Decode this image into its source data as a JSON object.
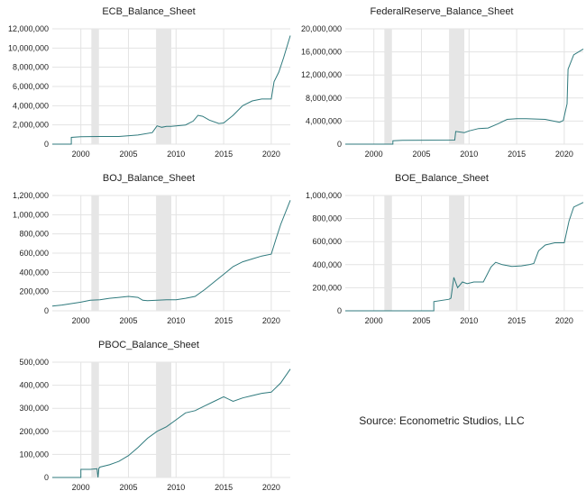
{
  "source_note": "Source: Econometric Studios, LLC",
  "colors": {
    "line": "#2f7a7d",
    "shade": "#e6e6e6",
    "grid": "#e3e3e3"
  },
  "chart_data": [
    {
      "type": "line",
      "title": "ECB_Balance_Sheet",
      "xlim": [
        1997,
        2022
      ],
      "xticks": [
        2000,
        2005,
        2010,
        2015,
        2020
      ],
      "ylim": [
        0,
        12000000
      ],
      "yticks": [
        0,
        2000000,
        4000000,
        6000000,
        8000000,
        10000000,
        12000000
      ],
      "ytick_labels": [
        "0",
        "2,000,000",
        "4,000,000",
        "6,000,000",
        "8,000,000",
        "10,000,000",
        "12,000,000"
      ],
      "recessions": [
        [
          2001.1,
          2001.9
        ],
        [
          2007.9,
          2009.5
        ]
      ],
      "x": [
        1997,
        1999,
        1999,
        2000,
        2002,
        2004,
        2006,
        2007.5,
        2008,
        2008.5,
        2009,
        2009.5,
        2010.5,
        2011,
        2011.8,
        2012.3,
        2012.8,
        2013.5,
        2014.5,
        2015,
        2016,
        2017,
        2018,
        2019,
        2020,
        2020.3,
        2020.8,
        2021.3,
        2022
      ],
      "y": [
        0,
        0,
        700000,
        780000,
        800000,
        800000,
        950000,
        1200000,
        1900000,
        1750000,
        1850000,
        1850000,
        1950000,
        2000000,
        2400000,
        3000000,
        2900000,
        2500000,
        2150000,
        2200000,
        3000000,
        4000000,
        4500000,
        4700000,
        4700000,
        6500000,
        7500000,
        9000000,
        11300000
      ]
    },
    {
      "type": "line",
      "title": "FederalReserve_Balance_Sheet",
      "xlim": [
        1997,
        2022
      ],
      "xticks": [
        2000,
        2005,
        2010,
        2015,
        2020
      ],
      "ylim": [
        0,
        20000000
      ],
      "yticks": [
        0,
        4000000,
        8000000,
        12000000,
        16000000,
        20000000
      ],
      "ytick_labels": [
        "0",
        "4,000,000",
        "8,000,000",
        "12,000,000",
        "16,000,000",
        "20,000,000"
      ],
      "recessions": [
        [
          2001.1,
          2001.9
        ],
        [
          2007.9,
          2009.5
        ]
      ],
      "x": [
        1997,
        2002,
        2002,
        2003,
        2008.5,
        2008.6,
        2009.5,
        2010,
        2011,
        2012,
        2013,
        2014,
        2015,
        2016,
        2018,
        2019.5,
        2019.9,
        2020.3,
        2020.4,
        2021,
        2022
      ],
      "y": [
        0,
        0,
        600000,
        650000,
        700000,
        2200000,
        2000000,
        2300000,
        2700000,
        2800000,
        3500000,
        4300000,
        4400000,
        4400000,
        4300000,
        3800000,
        4100000,
        7000000,
        13000000,
        15500000,
        16500000
      ]
    },
    {
      "type": "line",
      "title": "BOJ_Balance_Sheet",
      "xlim": [
        1997,
        2022
      ],
      "xticks": [
        2000,
        2005,
        2010,
        2015,
        2020
      ],
      "ylim": [
        0,
        1200000
      ],
      "yticks": [
        0,
        200000,
        400000,
        600000,
        800000,
        1000000,
        1200000
      ],
      "ytick_labels": [
        "0",
        "200,000",
        "400,000",
        "600,000",
        "800,000",
        "1,000,000",
        "1,200,000"
      ],
      "recessions": [
        [
          2001.1,
          2001.9
        ],
        [
          2007.9,
          2009.5
        ]
      ],
      "x": [
        1997,
        1998,
        1999,
        2000,
        2001,
        2002,
        2003,
        2004,
        2005,
        2006,
        2006.5,
        2007,
        2008,
        2009,
        2010,
        2011,
        2012,
        2013,
        2014,
        2015,
        2016,
        2017,
        2018,
        2019,
        2020,
        2020.5,
        2021,
        2022
      ],
      "y": [
        50000,
        60000,
        75000,
        90000,
        110000,
        115000,
        130000,
        140000,
        150000,
        140000,
        110000,
        105000,
        110000,
        115000,
        115000,
        130000,
        150000,
        220000,
        300000,
        380000,
        460000,
        510000,
        540000,
        570000,
        590000,
        750000,
        900000,
        1150000
      ]
    },
    {
      "type": "line",
      "title": "BOE_Balance_Sheet",
      "xlim": [
        1997,
        2022
      ],
      "xticks": [
        2000,
        2005,
        2010,
        2015,
        2020
      ],
      "ylim": [
        0,
        1000000
      ],
      "yticks": [
        0,
        200000,
        400000,
        600000,
        800000,
        1000000
      ],
      "ytick_labels": [
        "0",
        "200,000",
        "400,000",
        "600,000",
        "800,000",
        "1,000,000"
      ],
      "recessions": [
        [
          2001.1,
          2001.9
        ],
        [
          2007.9,
          2009.5
        ]
      ],
      "x": [
        1997,
        2006.3,
        2006.3,
        2007.9,
        2008.1,
        2008.4,
        2008.8,
        2009.3,
        2009.8,
        2010.5,
        2011.5,
        2012.3,
        2012.8,
        2013.5,
        2014.5,
        2015.5,
        2016.3,
        2016.8,
        2017.3,
        2018,
        2019,
        2020,
        2020.5,
        2021,
        2022
      ],
      "y": [
        0,
        0,
        80000,
        100000,
        110000,
        290000,
        200000,
        250000,
        235000,
        250000,
        250000,
        380000,
        420000,
        400000,
        385000,
        390000,
        400000,
        410000,
        520000,
        570000,
        590000,
        590000,
        780000,
        900000,
        940000
      ]
    },
    {
      "type": "line",
      "title": "PBOC_Balance_Sheet",
      "xlim": [
        1997,
        2022
      ],
      "xticks": [
        2000,
        2005,
        2010,
        2015,
        2020
      ],
      "ylim": [
        0,
        500000
      ],
      "yticks": [
        0,
        100000,
        200000,
        300000,
        400000,
        500000
      ],
      "ytick_labels": [
        "0",
        "100,000",
        "200,000",
        "300,000",
        "400,000",
        "500,000"
      ],
      "recessions": [
        [
          2001.1,
          2001.9
        ],
        [
          2007.9,
          2009.5
        ]
      ],
      "x": [
        1997,
        2000,
        2000,
        2001,
        2001.7,
        2001.8,
        2001.9,
        2002,
        2003,
        2004,
        2005,
        2006,
        2007,
        2008,
        2009,
        2010,
        2011,
        2012,
        2013,
        2014,
        2015,
        2016,
        2017,
        2018,
        2019,
        2020,
        2021,
        2022
      ],
      "y": [
        0,
        0,
        35000,
        35000,
        38000,
        0,
        40000,
        45000,
        55000,
        70000,
        95000,
        130000,
        170000,
        200000,
        220000,
        250000,
        280000,
        290000,
        310000,
        330000,
        350000,
        330000,
        345000,
        355000,
        365000,
        370000,
        410000,
        470000
      ]
    }
  ]
}
